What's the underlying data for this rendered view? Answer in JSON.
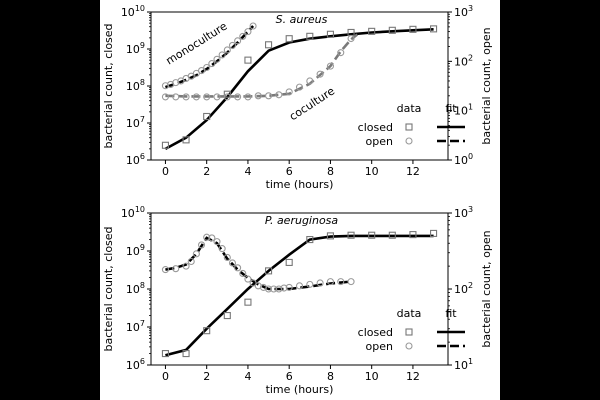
{
  "chart_data": [
    {
      "type": "scatter",
      "title": "S. aureus",
      "xlabel": "time (hours)",
      "ylabel_left": "bacterial count, closed",
      "ylabel_right": "bacterial count, open",
      "xlim": [
        -0.7,
        13.7
      ],
      "xticks": [
        0,
        2,
        4,
        6,
        8,
        10,
        12
      ],
      "ylim_left": [
        1000000,
        10000000000
      ],
      "ylim_right": [
        1,
        1000
      ],
      "yscale": "log",
      "yticks_left": [
        {
          "exp": "6",
          "value": 1000000
        },
        {
          "exp": "7",
          "value": 10000000
        },
        {
          "exp": "8",
          "value": 100000000
        },
        {
          "exp": "9",
          "value": 1000000000
        },
        {
          "exp": "10",
          "value": 10000000000
        }
      ],
      "yticks_right": [
        {
          "exp": "0",
          "value": 1
        },
        {
          "exp": "1",
          "value": 10
        },
        {
          "exp": "2",
          "value": 100
        },
        {
          "exp": "3",
          "value": 1000
        }
      ],
      "annotations": [
        {
          "text": "monoculture",
          "x": 1.6,
          "y": 200
        },
        {
          "text": "coculture",
          "x": 7.2,
          "y": 12
        }
      ],
      "legend": {
        "placement": "bottom-right",
        "data_header": "data",
        "fit_header": "fit",
        "closed_label": "closed",
        "open_label": "open"
      },
      "series": [
        {
          "name": "closed",
          "axis": "left",
          "kind": "data",
          "x": [
            0,
            1,
            2,
            3,
            4,
            5,
            6,
            7,
            8,
            9,
            10,
            11,
            12,
            13
          ],
          "y": [
            2500000,
            3500000,
            15000000,
            60000000,
            500000000,
            1300000000,
            1900000000,
            2200000000,
            2500000000,
            2800000000,
            3000000000,
            3200000000,
            3400000000,
            3500000000
          ]
        },
        {
          "name": "closed",
          "axis": "left",
          "kind": "fit",
          "x": [
            0,
            1,
            2,
            3,
            4,
            5,
            6,
            7,
            8,
            9,
            10,
            11,
            12,
            13
          ],
          "y": [
            2000000,
            4000000,
            12000000,
            50000000,
            250000000,
            900000000,
            1500000000,
            1900000000,
            2200000000,
            2500000000,
            2800000000,
            3000000000,
            3200000000,
            3400000000
          ]
        },
        {
          "name": "open",
          "axis": "right",
          "kind": "data",
          "x": [
            0,
            0.25,
            0.5,
            0.75,
            1,
            1.25,
            1.5,
            1.75,
            2,
            2.25,
            2.5,
            2.75,
            3,
            3.25,
            3.5,
            3.75,
            4,
            4.25
          ],
          "y": [
            32,
            34,
            37,
            40,
            45,
            50,
            57,
            65,
            75,
            90,
            110,
            135,
            170,
            210,
            260,
            320,
            400,
            520
          ]
        },
        {
          "name": "open",
          "axis": "right",
          "kind": "fit",
          "x": [
            0,
            0.5,
            1,
            1.5,
            2,
            2.5,
            3,
            3.5,
            4,
            4.25
          ],
          "y": [
            30,
            35,
            42,
            52,
            70,
            100,
            150,
            240,
            400,
            520
          ]
        },
        {
          "name": "open",
          "axis": "right",
          "kind": "data",
          "x": [
            0,
            0.5,
            1,
            1.5,
            2,
            2.5,
            3,
            3.5,
            4,
            4.5,
            5,
            5.5,
            6,
            6.5,
            7,
            7.5,
            8,
            8.5,
            9
          ],
          "y": [
            19,
            19,
            19,
            19,
            19,
            19,
            19,
            19,
            19,
            20,
            20,
            21,
            24,
            30,
            40,
            55,
            80,
            150,
            290
          ]
        },
        {
          "name": "open",
          "axis": "right",
          "kind": "fit",
          "x": [
            0,
            1,
            2,
            3,
            4,
            5,
            6,
            7,
            8,
            8.5,
            9,
            9.3
          ],
          "y": [
            20,
            19.5,
            19.5,
            19.5,
            19.5,
            20,
            22,
            35,
            80,
            160,
            280,
            350
          ]
        }
      ]
    },
    {
      "type": "scatter",
      "title": "P. aeruginosa",
      "xlabel": "time (hours)",
      "ylabel_left": "bacterial count, closed",
      "ylabel_right": "bacterial count, open",
      "xlim": [
        -0.7,
        13.7
      ],
      "xticks": [
        0,
        2,
        4,
        6,
        8,
        10,
        12
      ],
      "ylim_left": [
        1000000,
        10000000000
      ],
      "ylim_right": [
        10,
        1000
      ],
      "yscale": "log",
      "yticks_left": [
        {
          "exp": "6",
          "value": 1000000
        },
        {
          "exp": "7",
          "value": 10000000
        },
        {
          "exp": "8",
          "value": 100000000
        },
        {
          "exp": "9",
          "value": 1000000000
        },
        {
          "exp": "10",
          "value": 10000000000
        }
      ],
      "yticks_right": [
        {
          "exp": "1",
          "value": 10
        },
        {
          "exp": "2",
          "value": 100
        },
        {
          "exp": "3",
          "value": 1000
        }
      ],
      "legend": {
        "placement": "bottom-right",
        "data_header": "data",
        "fit_header": "fit",
        "closed_label": "closed",
        "open_label": "open"
      },
      "series": [
        {
          "name": "closed",
          "axis": "left",
          "kind": "data",
          "x": [
            0,
            1,
            2,
            3,
            4,
            5,
            6,
            7,
            8,
            9,
            10,
            11,
            12,
            13
          ],
          "y": [
            2000000,
            2000000,
            8000000,
            20000000,
            45000000,
            300000000,
            500000000,
            2000000000,
            2500000000,
            2600000000,
            2600000000,
            2600000000,
            2700000000,
            2900000000
          ]
        },
        {
          "name": "closed",
          "axis": "left",
          "kind": "fit",
          "x": [
            0,
            1,
            2,
            3,
            4,
            5,
            6,
            7,
            8,
            9,
            10,
            11,
            12,
            13
          ],
          "y": [
            1800000,
            2500000,
            9000000,
            30000000,
            100000000,
            300000000,
            800000000,
            2000000000,
            2400000000,
            2500000000,
            2500000000,
            2500000000,
            2500000000,
            2500000000
          ]
        },
        {
          "name": "open",
          "axis": "right",
          "kind": "data",
          "x": [
            0,
            0.5,
            1,
            1.25,
            1.5,
            1.75,
            2,
            2.25,
            2.5,
            2.75,
            3,
            3.25,
            3.5,
            3.75,
            4,
            4.25,
            4.5,
            4.75,
            5,
            5.25,
            5.5,
            5.75,
            6,
            6.5,
            7,
            7.5,
            8,
            8.5,
            9
          ],
          "y": [
            180,
            185,
            200,
            230,
            290,
            380,
            480,
            470,
            420,
            340,
            260,
            220,
            190,
            160,
            135,
            120,
            110,
            105,
            100,
            100,
            100,
            103,
            105,
            110,
            115,
            120,
            125,
            125,
            125
          ]
        },
        {
          "name": "open",
          "axis": "right",
          "kind": "fit",
          "x": [
            0,
            0.5,
            1,
            1.5,
            2,
            2.5,
            3,
            3.5,
            4,
            4.5,
            5,
            5.5,
            6,
            7,
            8,
            9
          ],
          "y": [
            180,
            190,
            210,
            290,
            470,
            400,
            250,
            180,
            140,
            115,
            100,
            100,
            100,
            108,
            118,
            125
          ]
        }
      ]
    }
  ]
}
